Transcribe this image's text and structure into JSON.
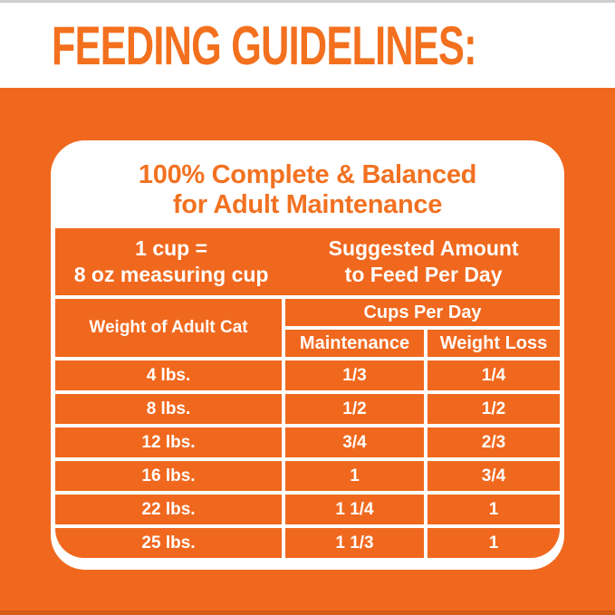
{
  "colors": {
    "orange_background": "#f0681e",
    "orange_text": "#f27121",
    "title_orange": "#f3701e",
    "gridline_white": "#ffffff",
    "bottom_strip": "#d65a18"
  },
  "header": {
    "title": "FEEDING GUIDELINES:"
  },
  "panel": {
    "heading_line1": "100% Complete & Balanced",
    "heading_line2": "for Adult Maintenance",
    "info": {
      "cup_equiv_line1": "1 cup =",
      "cup_equiv_line2": "8 oz measuring cup",
      "suggested_line1": "Suggested Amount",
      "suggested_line2": "to Feed Per Day"
    },
    "table": {
      "weight_header": "Weight of Adult Cat",
      "cups_header": "Cups Per Day",
      "col_maintenance": "Maintenance",
      "col_weight_loss": "Weight Loss",
      "rows": [
        {
          "weight": "4 lbs.",
          "maintenance": "1/3",
          "weight_loss": "1/4"
        },
        {
          "weight": "8 lbs.",
          "maintenance": "1/2",
          "weight_loss": "1/2"
        },
        {
          "weight": "12 lbs.",
          "maintenance": "3/4",
          "weight_loss": "2/3"
        },
        {
          "weight": "16 lbs.",
          "maintenance": "1",
          "weight_loss": "3/4"
        },
        {
          "weight": "22 lbs.",
          "maintenance": "1 1/4",
          "weight_loss": "1"
        },
        {
          "weight": "25 lbs.",
          "maintenance": "1 1/3",
          "weight_loss": "1"
        }
      ]
    }
  }
}
